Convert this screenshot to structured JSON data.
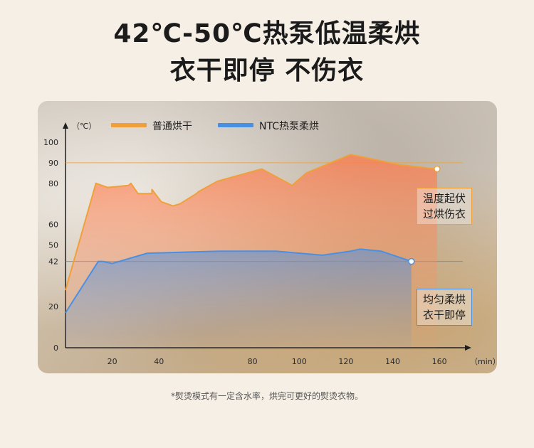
{
  "headline": {
    "line1": "42℃-50℃热泵低温柔烘",
    "line2": "衣干即停  不伤衣"
  },
  "chart_data": {
    "type": "line",
    "y_unit_label": "（℃）",
    "x_unit_label": "（min）",
    "x_ticks": [
      20,
      40,
      80,
      100,
      120,
      140,
      160
    ],
    "y_ticks": [
      0,
      20,
      42,
      50,
      60,
      80,
      90,
      100
    ],
    "xlim": [
      0,
      170
    ],
    "ylim": [
      0,
      100
    ],
    "grid": false,
    "legend_position": "top-left",
    "reference_lines": [
      {
        "y": 90,
        "label": "90",
        "color": "#f0a03a"
      },
      {
        "y": 42,
        "label": "42",
        "color": "#4a90e2"
      }
    ],
    "series": [
      {
        "name": "普通烘干",
        "color": "#f0a03a",
        "x": [
          0,
          13,
          18,
          27,
          28,
          31,
          37,
          37,
          41,
          46,
          49,
          56,
          57,
          65,
          84,
          97,
          103,
          122,
          143,
          151,
          158,
          159
        ],
        "y": [
          28,
          80,
          78,
          79,
          80,
          75,
          75,
          77,
          71,
          69,
          70,
          75,
          76,
          81,
          87,
          79,
          85,
          94,
          89,
          88,
          87,
          87
        ]
      },
      {
        "name": "NTC热泵柔烘",
        "color": "#4a90e2",
        "x": [
          0,
          14,
          16,
          20,
          35,
          66,
          90,
          110,
          122,
          126,
          135,
          148
        ],
        "y": [
          17,
          42,
          42,
          41,
          46,
          47,
          47,
          45,
          47,
          48,
          47,
          42
        ]
      }
    ],
    "annotations": [
      {
        "text_line1": "温度起伏",
        "text_line2": "过烘伤衣",
        "color": "#f0a03a"
      },
      {
        "text_line1": "均匀柔烘",
        "text_line2": "衣干即停",
        "color": "#4a90e2"
      }
    ]
  },
  "footnote": "*熨烫模式有一定含水率，烘完可更好的熨烫衣物。"
}
